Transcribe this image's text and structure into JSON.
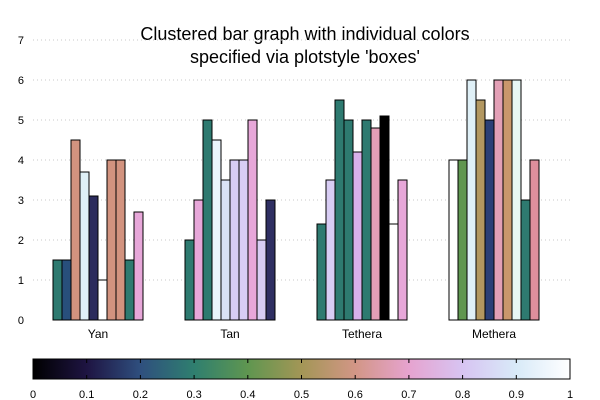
{
  "chart_data": {
    "type": "bar",
    "title_line1": "Clustered bar graph with individual colors",
    "title_line2": "specified via plotstyle 'boxes'",
    "categories": [
      "Yan",
      "Tan",
      "Tethera",
      "Methera"
    ],
    "yticks": [
      0,
      1,
      2,
      3,
      4,
      5,
      6,
      7
    ],
    "ylim": [
      0,
      7
    ],
    "grid": true,
    "colorbar": {
      "range": [
        0,
        1
      ],
      "ticks": [
        "0",
        "0.1",
        "0.2",
        "0.3",
        "0.4",
        "0.5",
        "0.6",
        "0.7",
        "0.8",
        "0.9",
        "1"
      ],
      "stops": [
        {
          "t": 0.0,
          "color": "#000000"
        },
        {
          "t": 0.1,
          "color": "#1e1442"
        },
        {
          "t": 0.2,
          "color": "#2f4f7e"
        },
        {
          "t": 0.3,
          "color": "#2f7f6f"
        },
        {
          "t": 0.4,
          "color": "#5f9650"
        },
        {
          "t": 0.5,
          "color": "#a39656"
        },
        {
          "t": 0.6,
          "color": "#d29686"
        },
        {
          "t": 0.7,
          "color": "#e6a3cf"
        },
        {
          "t": 0.8,
          "color": "#d7c4f2"
        },
        {
          "t": 0.9,
          "color": "#d8eaf8"
        },
        {
          "t": 1.0,
          "color": "#ffffff"
        }
      ]
    },
    "groups": [
      {
        "bars": [
          {
            "value": 1.5,
            "color": "#2e7a70"
          },
          {
            "value": 1.5,
            "color": "#284f7b"
          },
          {
            "value": 4.5,
            "color": "#d2937f"
          },
          {
            "value": 3.7,
            "color": "#dff0f7"
          },
          {
            "value": 3.1,
            "color": "#2b2b5c"
          },
          {
            "value": 1.0,
            "color": "#ffffff"
          },
          {
            "value": 4.0,
            "color": "#d2937f"
          },
          {
            "value": 4.0,
            "color": "#d2937f"
          },
          {
            "value": 1.5,
            "color": "#2e7a70"
          },
          {
            "value": 2.7,
            "color": "#e7a7d9"
          }
        ]
      },
      {
        "bars": [
          {
            "value": 2.0,
            "color": "#2e7a70"
          },
          {
            "value": 3.0,
            "color": "#e7a7d9"
          },
          {
            "value": 5.0,
            "color": "#2e7a70"
          },
          {
            "value": 4.5,
            "color": "#eaf5fb"
          },
          {
            "value": 3.5,
            "color": "#d9e2f6"
          },
          {
            "value": 4.0,
            "color": "#d8cdf4"
          },
          {
            "value": 4.0,
            "color": "#d8cdf4"
          },
          {
            "value": 5.0,
            "color": "#e7a7d9"
          },
          {
            "value": 2.0,
            "color": "#d8cdf4"
          },
          {
            "value": 3.0,
            "color": "#2f2f62"
          }
        ]
      },
      {
        "bars": [
          {
            "value": 2.4,
            "color": "#2e7a70"
          },
          {
            "value": 3.5,
            "color": "#d8cdf4"
          },
          {
            "value": 5.5,
            "color": "#2e7a70"
          },
          {
            "value": 5.0,
            "color": "#2e7a70"
          },
          {
            "value": 4.2,
            "color": "#d8b0ea"
          },
          {
            "value": 5.0,
            "color": "#2e7a70"
          },
          {
            "value": 4.8,
            "color": "#e39fb7"
          },
          {
            "value": 5.1,
            "color": "#000000"
          },
          {
            "value": 2.4,
            "color": "#ffffff"
          },
          {
            "value": 3.5,
            "color": "#e7a7d9"
          }
        ]
      },
      {
        "bars": [
          {
            "value": 4.0,
            "color": "#ffffff"
          },
          {
            "value": 4.0,
            "color": "#5f9650"
          },
          {
            "value": 6.0,
            "color": "#dff0f7"
          },
          {
            "value": 5.5,
            "color": "#b29760"
          },
          {
            "value": 5.0,
            "color": "#2b3f76"
          },
          {
            "value": 6.0,
            "color": "#e3a0b6"
          },
          {
            "value": 6.0,
            "color": "#c9976c"
          },
          {
            "value": 6.0,
            "color": "#e8f7f4"
          },
          {
            "value": 3.0,
            "color": "#2e7a70"
          },
          {
            "value": 4.0,
            "color": "#de8f9c"
          }
        ]
      }
    ]
  }
}
